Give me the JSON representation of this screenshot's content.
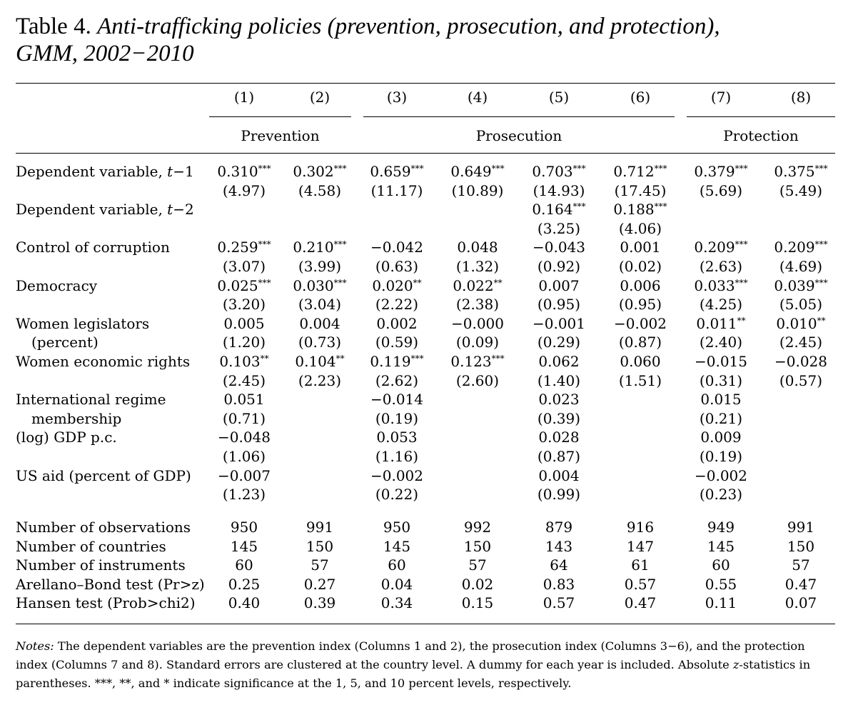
{
  "title": {
    "label": "Table 4.",
    "caption_line1": "Anti-trafficking policies (prevention, prosecution, and protection),",
    "caption_line2": "GMM, 2002−2010"
  },
  "columns": [
    "(1)",
    "(2)",
    "(3)",
    "(4)",
    "(5)",
    "(6)",
    "(7)",
    "(8)"
  ],
  "panels": {
    "prevention": "Prevention",
    "prosecution": "Prosecution",
    "protection": "Protection"
  },
  "rows": [
    {
      "label": "Dependent variable, ",
      "label_italic": "t",
      "label_tail": "−1",
      "coef": [
        "0.310|***",
        "0.302|***",
        "0.659|***",
        "0.649|***",
        "0.703|***",
        "0.712|***",
        "0.379|***",
        "0.375|***"
      ],
      "z": [
        "(4.97)",
        "(4.58)",
        "(11.17)",
        "(10.89)",
        "(14.93)",
        "(17.45)",
        "(5.69)",
        "(5.49)"
      ]
    },
    {
      "label": "Dependent variable, ",
      "label_italic": "t",
      "label_tail": "−2",
      "coef": [
        "",
        "",
        "",
        "",
        "0.164|***",
        "0.188|***",
        "",
        ""
      ],
      "z": [
        "",
        "",
        "",
        "",
        "(3.25)",
        "(4.06)",
        "",
        ""
      ]
    },
    {
      "label": "Control of corruption",
      "coef": [
        "0.259|***",
        "0.210|***",
        "−0.042|",
        "0.048|",
        "−0.043|",
        "0.001|",
        "0.209|***",
        "0.209|***"
      ],
      "z": [
        "(3.07)",
        "(3.99)",
        "(0.63)",
        "(1.32)",
        "(0.92)",
        "(0.02)",
        "(2.63)",
        "(4.69)"
      ]
    },
    {
      "label": "Democracy",
      "coef": [
        "0.025|***",
        "0.030|***",
        "0.020|**",
        "0.022|**",
        "0.007|",
        "0.006|",
        "0.033|***",
        "0.039|***"
      ],
      "z": [
        "(3.20)",
        "(3.04)",
        "(2.22)",
        "(2.38)",
        "(0.95)",
        "(0.95)",
        "(4.25)",
        "(5.05)"
      ]
    },
    {
      "label": "Women legislators",
      "label2": "(percent)",
      "coef": [
        "0.005|",
        "0.004|",
        "0.002|",
        "−0.000|",
        "−0.001|",
        "−0.002|",
        "0.011|**",
        "0.010|**"
      ],
      "z": [
        "(1.20)",
        "(0.73)",
        "(0.59)",
        "(0.09)",
        "(0.29)",
        "(0.87)",
        "(2.40)",
        "(2.45)"
      ]
    },
    {
      "label": "Women economic rights",
      "coef": [
        "0.103|**",
        "0.104|**",
        "0.119|***",
        "0.123|***",
        "0.062|",
        "0.060|",
        "−0.015|",
        "−0.028|"
      ],
      "z": [
        "(2.45)",
        "(2.23)",
        "(2.62)",
        "(2.60)",
        "(1.40)",
        "(1.51)",
        "(0.31)",
        "(0.57)"
      ]
    },
    {
      "label": "International regime",
      "label2": "membership",
      "coef": [
        "0.051|",
        "",
        "−0.014|",
        "",
        "0.023|",
        "",
        "0.015|",
        ""
      ],
      "z": [
        "(0.71)",
        "",
        "(0.19)",
        "",
        "(0.39)",
        "",
        "(0.21)",
        ""
      ]
    },
    {
      "label": "(log) GDP p.c.",
      "coef": [
        "−0.048|",
        "",
        "0.053|",
        "",
        "0.028|",
        "",
        "0.009|",
        ""
      ],
      "z": [
        "(1.06)",
        "",
        "(1.16)",
        "",
        "(0.87)",
        "",
        "(0.19)",
        ""
      ]
    },
    {
      "label": "US aid (percent of GDP)",
      "coef": [
        "−0.007|",
        "",
        "−0.002|",
        "",
        "0.004|",
        "",
        "−0.002|",
        ""
      ],
      "z": [
        "(1.23)",
        "",
        "(0.22)",
        "",
        "(0.99)",
        "",
        "(0.23)",
        ""
      ]
    }
  ],
  "stats": [
    {
      "label": "Number of observations",
      "values": [
        "950",
        "991",
        "950",
        "992",
        "879",
        "916",
        "949",
        "991"
      ]
    },
    {
      "label": "Number of countries",
      "values": [
        "145",
        "150",
        "145",
        "150",
        "143",
        "147",
        "145",
        "150"
      ]
    },
    {
      "label": "Number of instruments",
      "values": [
        "60",
        "57",
        "60",
        "57",
        "64",
        "61",
        "60",
        "57"
      ]
    },
    {
      "label": "Arellano–Bond test (Pr>z)",
      "values": [
        "0.25",
        "0.27",
        "0.04",
        "0.02",
        "0.83",
        "0.57",
        "0.55",
        "0.47"
      ]
    },
    {
      "label": "Hansen test (Prob>chi2)",
      "values": [
        "0.40",
        "0.39",
        "0.34",
        "0.15",
        "0.57",
        "0.47",
        "0.11",
        "0.07"
      ]
    }
  ],
  "notes": {
    "lead": "Notes:",
    "text1": " The dependent variables are the prevention index (Columns 1 and 2), the prosecution index (Columns 3−6), and the protection index (Columns 7 and 8). Standard errors are clustered at the country level. A dummy for each year is included. Absolute ",
    "z": "z",
    "text2": "-statistics in parentheses. ***, **, and * indicate significance at the 1, 5, and 10 percent levels, respectively."
  }
}
